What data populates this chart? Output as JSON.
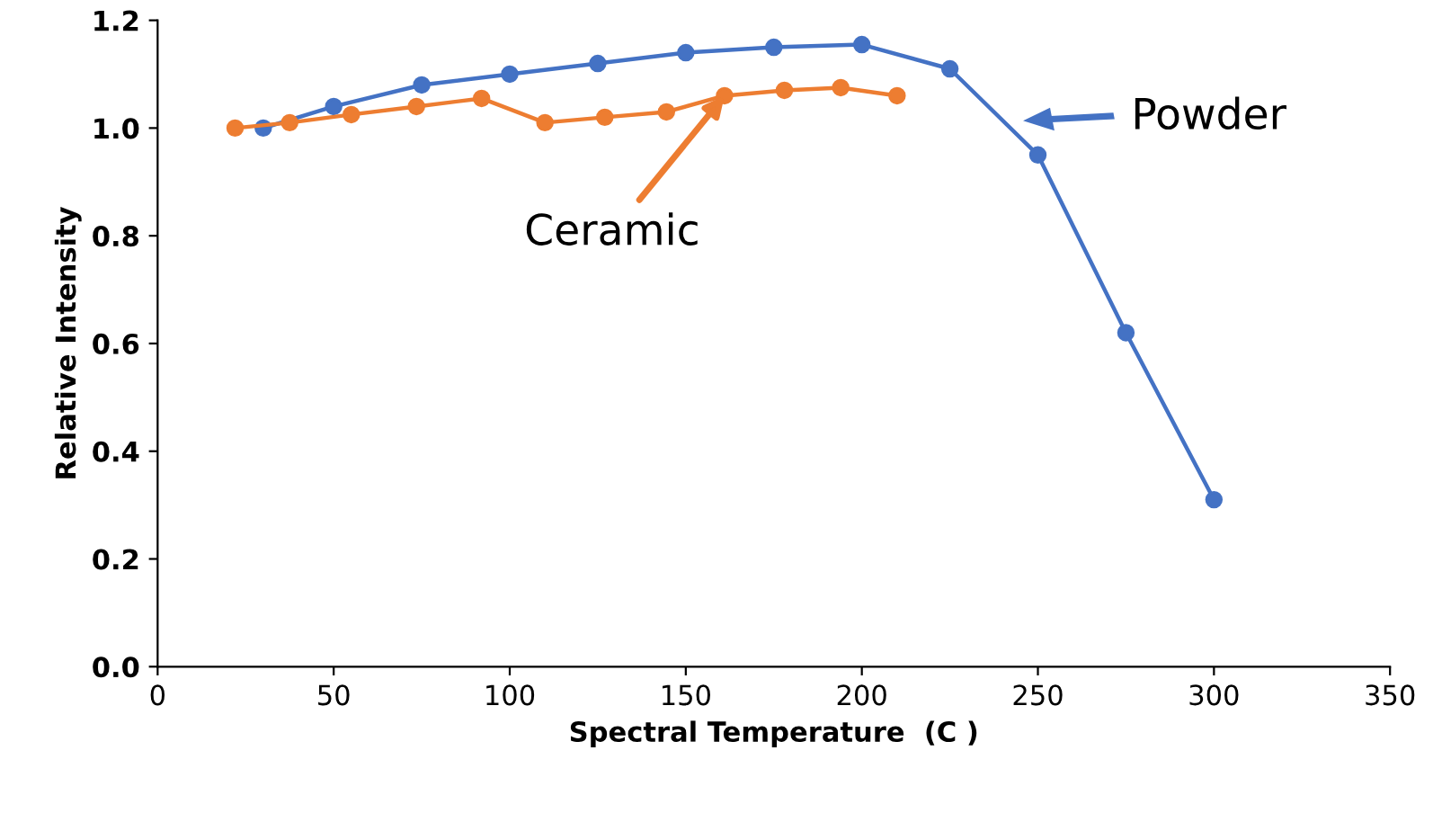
{
  "chart_data": {
    "type": "line",
    "xlabel": "Spectral Temperature  (C )",
    "ylabel": "Relative Intensity",
    "xlim": [
      0,
      350
    ],
    "xticks": [
      0,
      50,
      100,
      150,
      200,
      250,
      300,
      350
    ],
    "ylim": [
      0,
      1.2
    ],
    "yticks": [
      {
        "value": 0,
        "label": "0.0"
      },
      {
        "value": 0.2,
        "label": "0.2"
      },
      {
        "value": 0.4,
        "label": "0.4"
      },
      {
        "value": 0.6,
        "label": "0.6"
      },
      {
        "value": 0.8,
        "label": "0.8"
      },
      {
        "value": 1.0,
        "label": "1.0"
      },
      {
        "value": 1.2,
        "label": "1.2"
      }
    ],
    "grid": false,
    "legend": false,
    "marker": "circle",
    "line_style": "solid",
    "series": [
      {
        "color": "#4472c4",
        "x": [
          30,
          50,
          75,
          100,
          125,
          150,
          175,
          200,
          225,
          250,
          275,
          300
        ],
        "values": [
          1.0,
          1.04,
          1.08,
          1.1,
          1.12,
          1.14,
          1.15,
          1.155,
          1.11,
          0.95,
          0.62,
          0.31
        ]
      },
      {
        "color": "#ed7d31",
        "x": [
          22,
          37.5,
          55,
          73.5,
          92,
          110,
          127,
          144.5,
          161,
          178,
          194,
          210
        ],
        "values": [
          1.0,
          1.01,
          1.025,
          1.04,
          1.055,
          1.01,
          1.02,
          1.03,
          1.06,
          1.07,
          1.075,
          1.06
        ]
      }
    ],
    "annotations": [
      {
        "text": "Ceramic",
        "x": 161,
        "y": 1.06
      },
      "Powder"
    ]
  }
}
